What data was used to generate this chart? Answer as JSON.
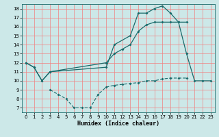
{
  "bg_color": "#cce8e8",
  "grid_color": "#f08080",
  "line_color": "#1a6b6b",
  "xlabel": "Humidex (Indice chaleur)",
  "xlim": [
    -0.5,
    23.5
  ],
  "ylim": [
    6.5,
    18.5
  ],
  "xticks": [
    0,
    1,
    2,
    3,
    4,
    5,
    6,
    7,
    8,
    9,
    10,
    11,
    12,
    13,
    14,
    15,
    16,
    17,
    18,
    19,
    20,
    21,
    22,
    23
  ],
  "yticks": [
    7,
    8,
    9,
    10,
    11,
    12,
    13,
    14,
    15,
    16,
    17,
    18
  ],
  "line1_x": [
    0,
    1,
    2,
    3,
    10,
    11,
    13,
    14,
    15,
    16,
    17,
    18,
    19,
    20,
    21,
    22,
    23
  ],
  "line1_y": [
    12,
    11.5,
    10,
    11,
    11.5,
    14,
    15,
    17.5,
    17.5,
    18,
    18.3,
    17.5,
    16.5,
    13,
    10,
    10,
    10
  ],
  "line2_x": [
    0,
    1,
    2,
    3,
    10,
    11,
    12,
    13,
    14,
    15,
    16,
    17,
    18,
    19,
    20
  ],
  "line2_y": [
    12,
    11.5,
    10,
    11,
    12,
    13,
    13.5,
    14,
    15.5,
    16.2,
    16.5,
    16.5,
    16.5,
    16.5,
    16.5
  ],
  "line3_x": [
    3,
    4,
    5,
    6,
    7,
    8,
    9,
    10,
    11,
    12,
    13,
    14,
    15,
    16,
    17,
    18,
    19,
    20
  ],
  "line3_y": [
    9,
    8.5,
    8,
    7,
    7,
    7,
    8.5,
    9.3,
    9.5,
    9.6,
    9.7,
    9.8,
    10,
    10,
    10.2,
    10.3,
    10.3,
    10.3
  ]
}
